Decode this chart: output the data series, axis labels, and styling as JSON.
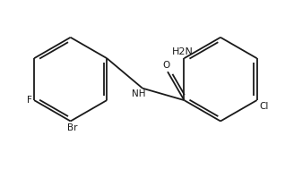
{
  "bg_color": "#ffffff",
  "line_color": "#1a1a1a",
  "text_color": "#1a1a1a",
  "label_nh": "NH",
  "label_o": "O",
  "label_nh2": "H2N",
  "label_cl": "Cl",
  "label_br": "Br",
  "label_f": "F",
  "figsize": [
    3.18,
    1.89
  ],
  "dpi": 100,
  "lw": 1.3,
  "fs": 7.5,
  "r": 0.28
}
